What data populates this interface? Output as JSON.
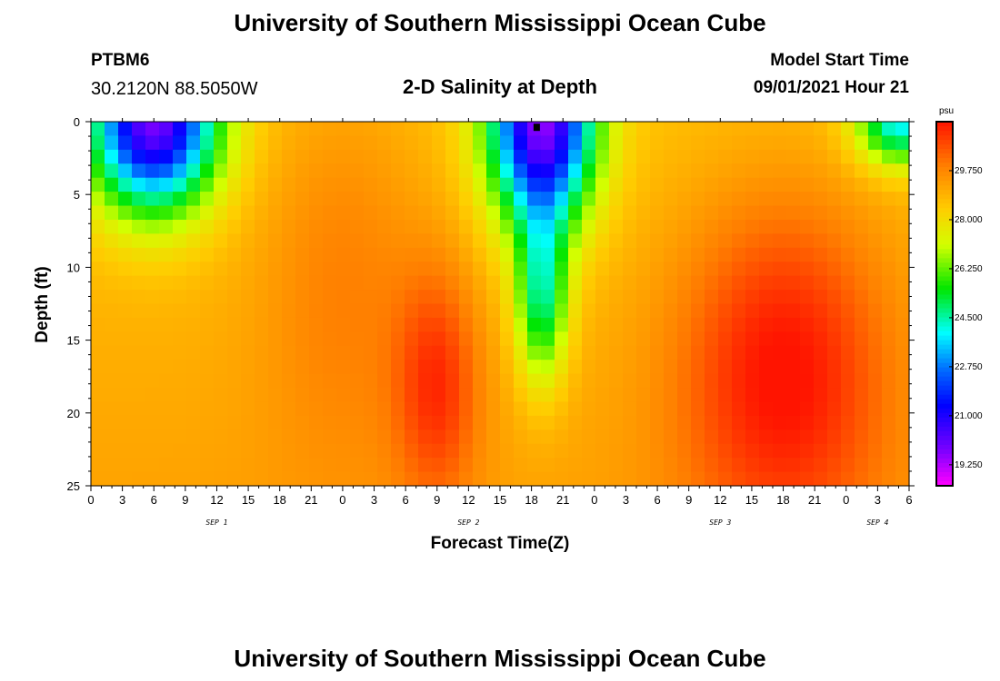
{
  "header": {
    "title": "University of Southern Mississippi Ocean Cube",
    "station_id": "PTBM6",
    "coordinates": "30.2120N  88.5050W",
    "plot_title": "2-D Salinity at Depth",
    "model_start_label": "Model Start Time",
    "model_start_time": "09/01/2021 Hour 21"
  },
  "footer": {
    "title": "University of Southern Mississippi Ocean Cube"
  },
  "chart_data": {
    "type": "heatmap",
    "title": "2-D Salinity at Depth",
    "xlabel": "Forecast Time(Z)",
    "ylabel": "Depth (ft)",
    "x_hours": {
      "start": 0,
      "end": 78,
      "step": 3
    },
    "x_tick_labels": [
      "0",
      "3",
      "6",
      "9",
      "12",
      "15",
      "18",
      "21",
      "0",
      "3",
      "6",
      "9",
      "12",
      "15",
      "18",
      "21",
      "0",
      "3",
      "6",
      "9",
      "12",
      "15",
      "18",
      "21",
      "0",
      "3",
      "6"
    ],
    "day_labels": [
      {
        "label": "SEP 1",
        "hour": 12
      },
      {
        "label": "SEP 2",
        "hour": 36
      },
      {
        "label": "SEP 3",
        "hour": 60
      },
      {
        "label": "SEP 4",
        "hour": 75
      }
    ],
    "y_depth": {
      "min": 0,
      "max": 25,
      "major_step": 5,
      "minor_step": 1
    },
    "y_tick_labels": [
      "0",
      "5",
      "10",
      "15",
      "20",
      "25"
    ],
    "colorbar": {
      "unit": "psu",
      "min": 18.5,
      "max": 31.5,
      "tick_labels": [
        "29.750",
        "28.000",
        "26.250",
        "24.500",
        "22.750",
        "21.000",
        "19.250"
      ],
      "tick_values": [
        29.75,
        28.0,
        26.25,
        24.5,
        22.75,
        21.0,
        19.25
      ]
    },
    "marker": {
      "hour": 42.5,
      "depth": 0.2
    },
    "field_features": [
      {
        "name": "fresh-plume-1",
        "hour": 6,
        "depth": 0,
        "value": 19.8,
        "sx_hours": 6,
        "sy_ft": 6
      },
      {
        "name": "fresh-plume-2",
        "hour": 43,
        "depth": 0,
        "value": 19.6,
        "sx_hours": 5,
        "sy_ft": 7
      },
      {
        "name": "fresh-tongue-2",
        "hour": 43,
        "depth": 12,
        "value": 24.6,
        "sx_hours": 2.5,
        "sy_ft": 6
      },
      {
        "name": "fresh-surface-3",
        "hour": 77,
        "depth": 0,
        "value": 23.8,
        "sx_hours": 4,
        "sy_ft": 3
      },
      {
        "name": "salty-core-1",
        "hour": 33,
        "depth": 18,
        "value": 30.6,
        "sx_hours": 4,
        "sy_ft": 8
      },
      {
        "name": "salty-core-2",
        "hour": 66,
        "depth": 17,
        "value": 31.2,
        "sx_hours": 10,
        "sy_ft": 12
      },
      {
        "name": "mid-salty-1",
        "hour": 24,
        "depth": 10,
        "value": 29.6,
        "sx_hours": 8,
        "sy_ft": 14
      }
    ]
  }
}
